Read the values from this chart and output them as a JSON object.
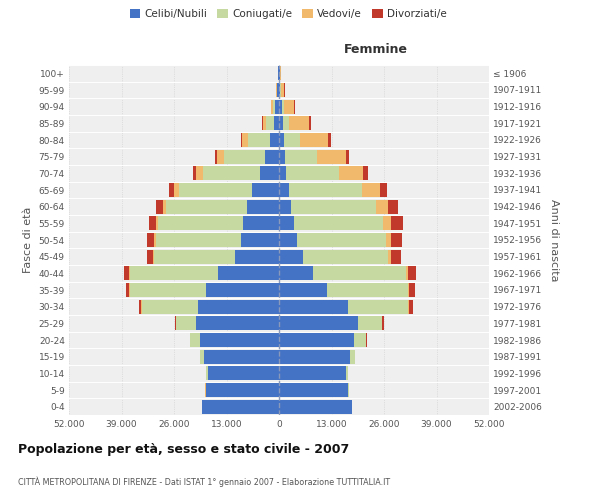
{
  "age_groups": [
    "0-4",
    "5-9",
    "10-14",
    "15-19",
    "20-24",
    "25-29",
    "30-34",
    "35-39",
    "40-44",
    "45-49",
    "50-54",
    "55-59",
    "60-64",
    "65-69",
    "70-74",
    "75-79",
    "80-84",
    "85-89",
    "90-94",
    "95-99",
    "100+"
  ],
  "birth_years": [
    "2002-2006",
    "1997-2001",
    "1992-1996",
    "1987-1991",
    "1982-1986",
    "1977-1981",
    "1972-1976",
    "1967-1971",
    "1962-1966",
    "1957-1961",
    "1952-1956",
    "1947-1951",
    "1942-1946",
    "1937-1941",
    "1932-1936",
    "1927-1931",
    "1922-1926",
    "1917-1921",
    "1912-1916",
    "1907-1911",
    "≤ 1906"
  ],
  "male_celibi": [
    19000,
    18000,
    17500,
    18500,
    19500,
    20500,
    20000,
    18000,
    15000,
    11000,
    9500,
    9000,
    8000,
    6800,
    4800,
    3500,
    2200,
    1200,
    900,
    400,
    200
  ],
  "male_coniugati": [
    100,
    200,
    500,
    1000,
    2500,
    5000,
    14000,
    19000,
    22000,
    20000,
    21000,
    21000,
    20000,
    18000,
    14000,
    10000,
    5500,
    2000,
    700,
    200,
    100
  ],
  "male_vedovi": [
    10,
    10,
    20,
    30,
    50,
    50,
    50,
    100,
    150,
    200,
    350,
    500,
    800,
    1200,
    1800,
    1800,
    1500,
    800,
    300,
    100,
    50
  ],
  "male_divorziati": [
    10,
    10,
    20,
    50,
    100,
    200,
    600,
    900,
    1200,
    1500,
    1800,
    1800,
    1600,
    1200,
    700,
    500,
    300,
    200,
    100,
    50,
    20
  ],
  "female_celibi": [
    18000,
    17000,
    16500,
    17500,
    18500,
    19500,
    17000,
    12000,
    8500,
    6000,
    4500,
    3800,
    3000,
    2500,
    1800,
    1500,
    1200,
    900,
    700,
    350,
    150
  ],
  "female_coniugati": [
    150,
    250,
    600,
    1200,
    3000,
    6000,
    15000,
    20000,
    23000,
    21000,
    22000,
    22000,
    21000,
    18000,
    13000,
    8000,
    4000,
    1500,
    500,
    150,
    50
  ],
  "female_vedovi": [
    10,
    10,
    20,
    30,
    50,
    80,
    100,
    200,
    400,
    700,
    1200,
    2000,
    3000,
    4500,
    6000,
    7000,
    7000,
    5000,
    2500,
    800,
    300
  ],
  "female_divorziati": [
    10,
    10,
    20,
    60,
    150,
    300,
    1000,
    1500,
    2000,
    2500,
    2800,
    2800,
    2500,
    1800,
    1200,
    900,
    600,
    400,
    200,
    80,
    30
  ],
  "colors": {
    "celibi": "#4472C4",
    "coniugati": "#C5D9A0",
    "vedovi": "#F0B96B",
    "divorziati": "#C0392B"
  },
  "xlim": 52000,
  "title1": "Popolazione per età, sesso e stato civile - 2007",
  "title2": "CITTÀ METROPOLITANA DI FIRENZE - Dati ISTAT 1° gennaio 2007 - Elaborazione TUTTITALIA.IT",
  "ylabel": "Fasce di età",
  "ylabel2": "Anni di nascita",
  "legend_labels": [
    "Celibi/Nubili",
    "Coniugati/e",
    "Vedovi/e",
    "Divorziati/e"
  ],
  "femmine_label": "Femmine",
  "background_color": "#FFFFFF",
  "plot_background": "#EFEFEF"
}
